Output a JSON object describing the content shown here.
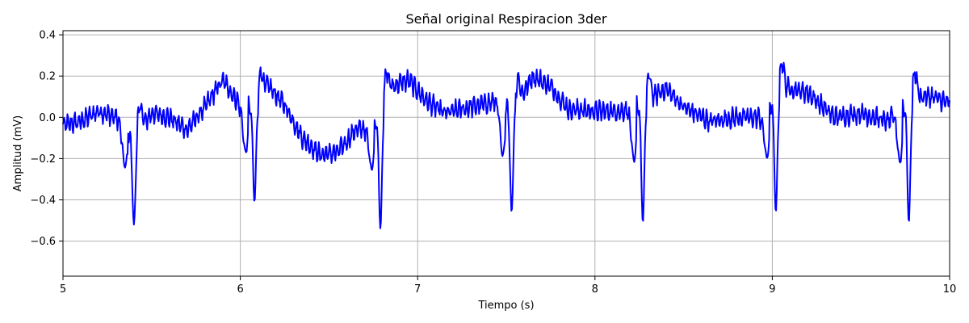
{
  "chart_data": {
    "type": "line",
    "title": "Señal original Respiracion 3der",
    "xlabel": "Tiempo (s)",
    "ylabel": "Amplitud (mV)",
    "xlim": [
      5,
      10
    ],
    "ylim": [
      -0.77,
      0.42
    ],
    "xticks": [
      5,
      6,
      7,
      8,
      9,
      10
    ],
    "yticks": [
      -0.6,
      -0.4,
      -0.2,
      0.0,
      0.2,
      0.4
    ],
    "ytick_labels": [
      "−0.6",
      "−0.4",
      "−0.2",
      "0.0",
      "0.2",
      "0.4"
    ],
    "grid": true,
    "line_color": "#0000ff",
    "qrs_times": [
      5.4,
      6.08,
      6.79,
      7.53,
      8.27,
      9.02,
      9.77
    ],
    "qrs_depths": [
      -0.52,
      -0.41,
      -0.54,
      -0.46,
      -0.51,
      -0.46,
      -0.51
    ],
    "baseline": {
      "x": [
        5.0,
        5.1,
        5.2,
        5.3,
        5.4,
        5.5,
        5.6,
        5.7,
        5.8,
        5.9,
        6.0,
        6.08,
        6.15,
        6.25,
        6.35,
        6.45,
        6.55,
        6.65,
        6.75,
        6.85,
        6.95,
        7.05,
        7.15,
        7.3,
        7.45,
        7.55,
        7.65,
        7.75,
        7.85,
        8.0,
        8.15,
        8.3,
        8.4,
        8.5,
        8.65,
        8.8,
        8.95,
        9.05,
        9.2,
        9.35,
        9.5,
        9.65,
        9.8,
        9.9,
        10.0
      ],
      "y": [
        -0.04,
        -0.02,
        0.03,
        0.0,
        -0.1,
        0.02,
        0.0,
        -0.06,
        0.05,
        0.18,
        0.06,
        0.05,
        0.16,
        0.06,
        -0.1,
        -0.18,
        -0.17,
        -0.06,
        -0.05,
        0.15,
        0.18,
        0.08,
        0.02,
        0.05,
        0.08,
        0.05,
        0.2,
        0.15,
        0.04,
        0.03,
        0.03,
        0.08,
        0.14,
        0.05,
        -0.02,
        0.0,
        0.0,
        0.15,
        0.12,
        0.0,
        0.02,
        -0.02,
        0.1,
        0.1,
        0.07
      ]
    },
    "noise_amplitude": 0.05
  }
}
